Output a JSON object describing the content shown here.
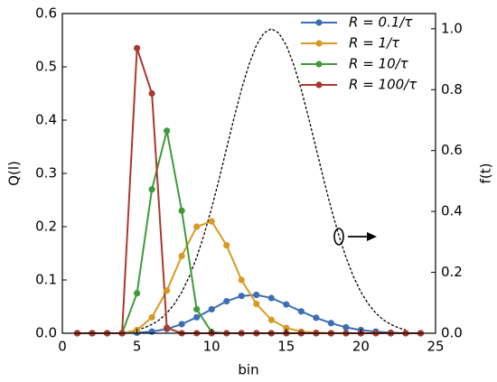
{
  "chart_data": {
    "type": "line",
    "xlabel": "bin",
    "ylabel": "Q(l)",
    "y2label": "f(t)",
    "xlim": [
      0,
      25
    ],
    "xticks": [
      0,
      5,
      10,
      15,
      20,
      25
    ],
    "ylim": [
      0,
      0.6
    ],
    "yticks": [
      {
        "value": 0,
        "label": "0.0"
      },
      0.1,
      0.2,
      0.3,
      0.4,
      0.5,
      0.6
    ],
    "y2lim": [
      0,
      1.05
    ],
    "y2ticks": [
      {
        "value": 0,
        "label": "0.0"
      },
      0.2,
      0.4,
      0.6,
      0.8,
      {
        "value": 1,
        "label": "1.0"
      }
    ],
    "legend": "upper right",
    "x": [
      1,
      2,
      3,
      4,
      5,
      6,
      7,
      8,
      9,
      10,
      11,
      12,
      13,
      14,
      15,
      16,
      17,
      18,
      19,
      20,
      21,
      22,
      23,
      24
    ],
    "series": [
      {
        "name": "R = 0.1/τ",
        "color": "#3d6db5",
        "values": [
          0,
          0,
          0,
          0,
          0.001,
          0.003,
          0.008,
          0.017,
          0.03,
          0.045,
          0.06,
          0.07,
          0.072,
          0.066,
          0.054,
          0.041,
          0.029,
          0.019,
          0.011,
          0.006,
          0.003,
          0.001,
          0,
          0
        ]
      },
      {
        "name": "R = 1/τ",
        "color": "#d89a22",
        "values": [
          0,
          0,
          0,
          0,
          0.006,
          0.03,
          0.08,
          0.145,
          0.2,
          0.21,
          0.165,
          0.1,
          0.055,
          0.025,
          0.01,
          0.003,
          0.001,
          0,
          0,
          0,
          0,
          0,
          0,
          0
        ]
      },
      {
        "name": "R = 10/τ",
        "color": "#3f9a3a",
        "values": [
          0,
          0,
          0,
          0,
          0.075,
          0.27,
          0.38,
          0.23,
          0.045,
          0.002,
          0,
          0,
          0,
          0,
          0,
          0,
          0,
          0,
          0,
          0,
          0,
          0,
          0,
          0
        ]
      },
      {
        "name": "R = 100/τ",
        "color": "#a83a30",
        "values": [
          0,
          0,
          0,
          0,
          0.535,
          0.45,
          0.01,
          0,
          0,
          0,
          0,
          0,
          0,
          0,
          0,
          0,
          0,
          0,
          0,
          0,
          0,
          0,
          0,
          0
        ]
      }
    ],
    "f_curve": {
      "axis": "y2",
      "color": "#000000",
      "x": [
        5,
        5.5,
        6,
        6.5,
        7,
        7.5,
        8,
        8.5,
        9,
        9.5,
        10,
        10.5,
        11,
        11.5,
        12,
        12.5,
        13,
        13.5,
        14,
        14.5,
        15,
        15.5,
        16,
        16.5,
        17,
        17.5,
        18,
        18.5,
        19,
        19.5,
        20,
        20.5,
        21,
        21.5,
        22,
        22.5,
        23
      ],
      "values": [
        0.011,
        0.018,
        0.029,
        0.044,
        0.066,
        0.096,
        0.135,
        0.186,
        0.249,
        0.325,
        0.411,
        0.506,
        0.607,
        0.707,
        0.801,
        0.882,
        0.946,
        0.986,
        1,
        0.986,
        0.946,
        0.882,
        0.801,
        0.707,
        0.607,
        0.506,
        0.411,
        0.325,
        0.249,
        0.186,
        0.135,
        0.096,
        0.066,
        0.044,
        0.029,
        0.018,
        0.011
      ]
    }
  }
}
